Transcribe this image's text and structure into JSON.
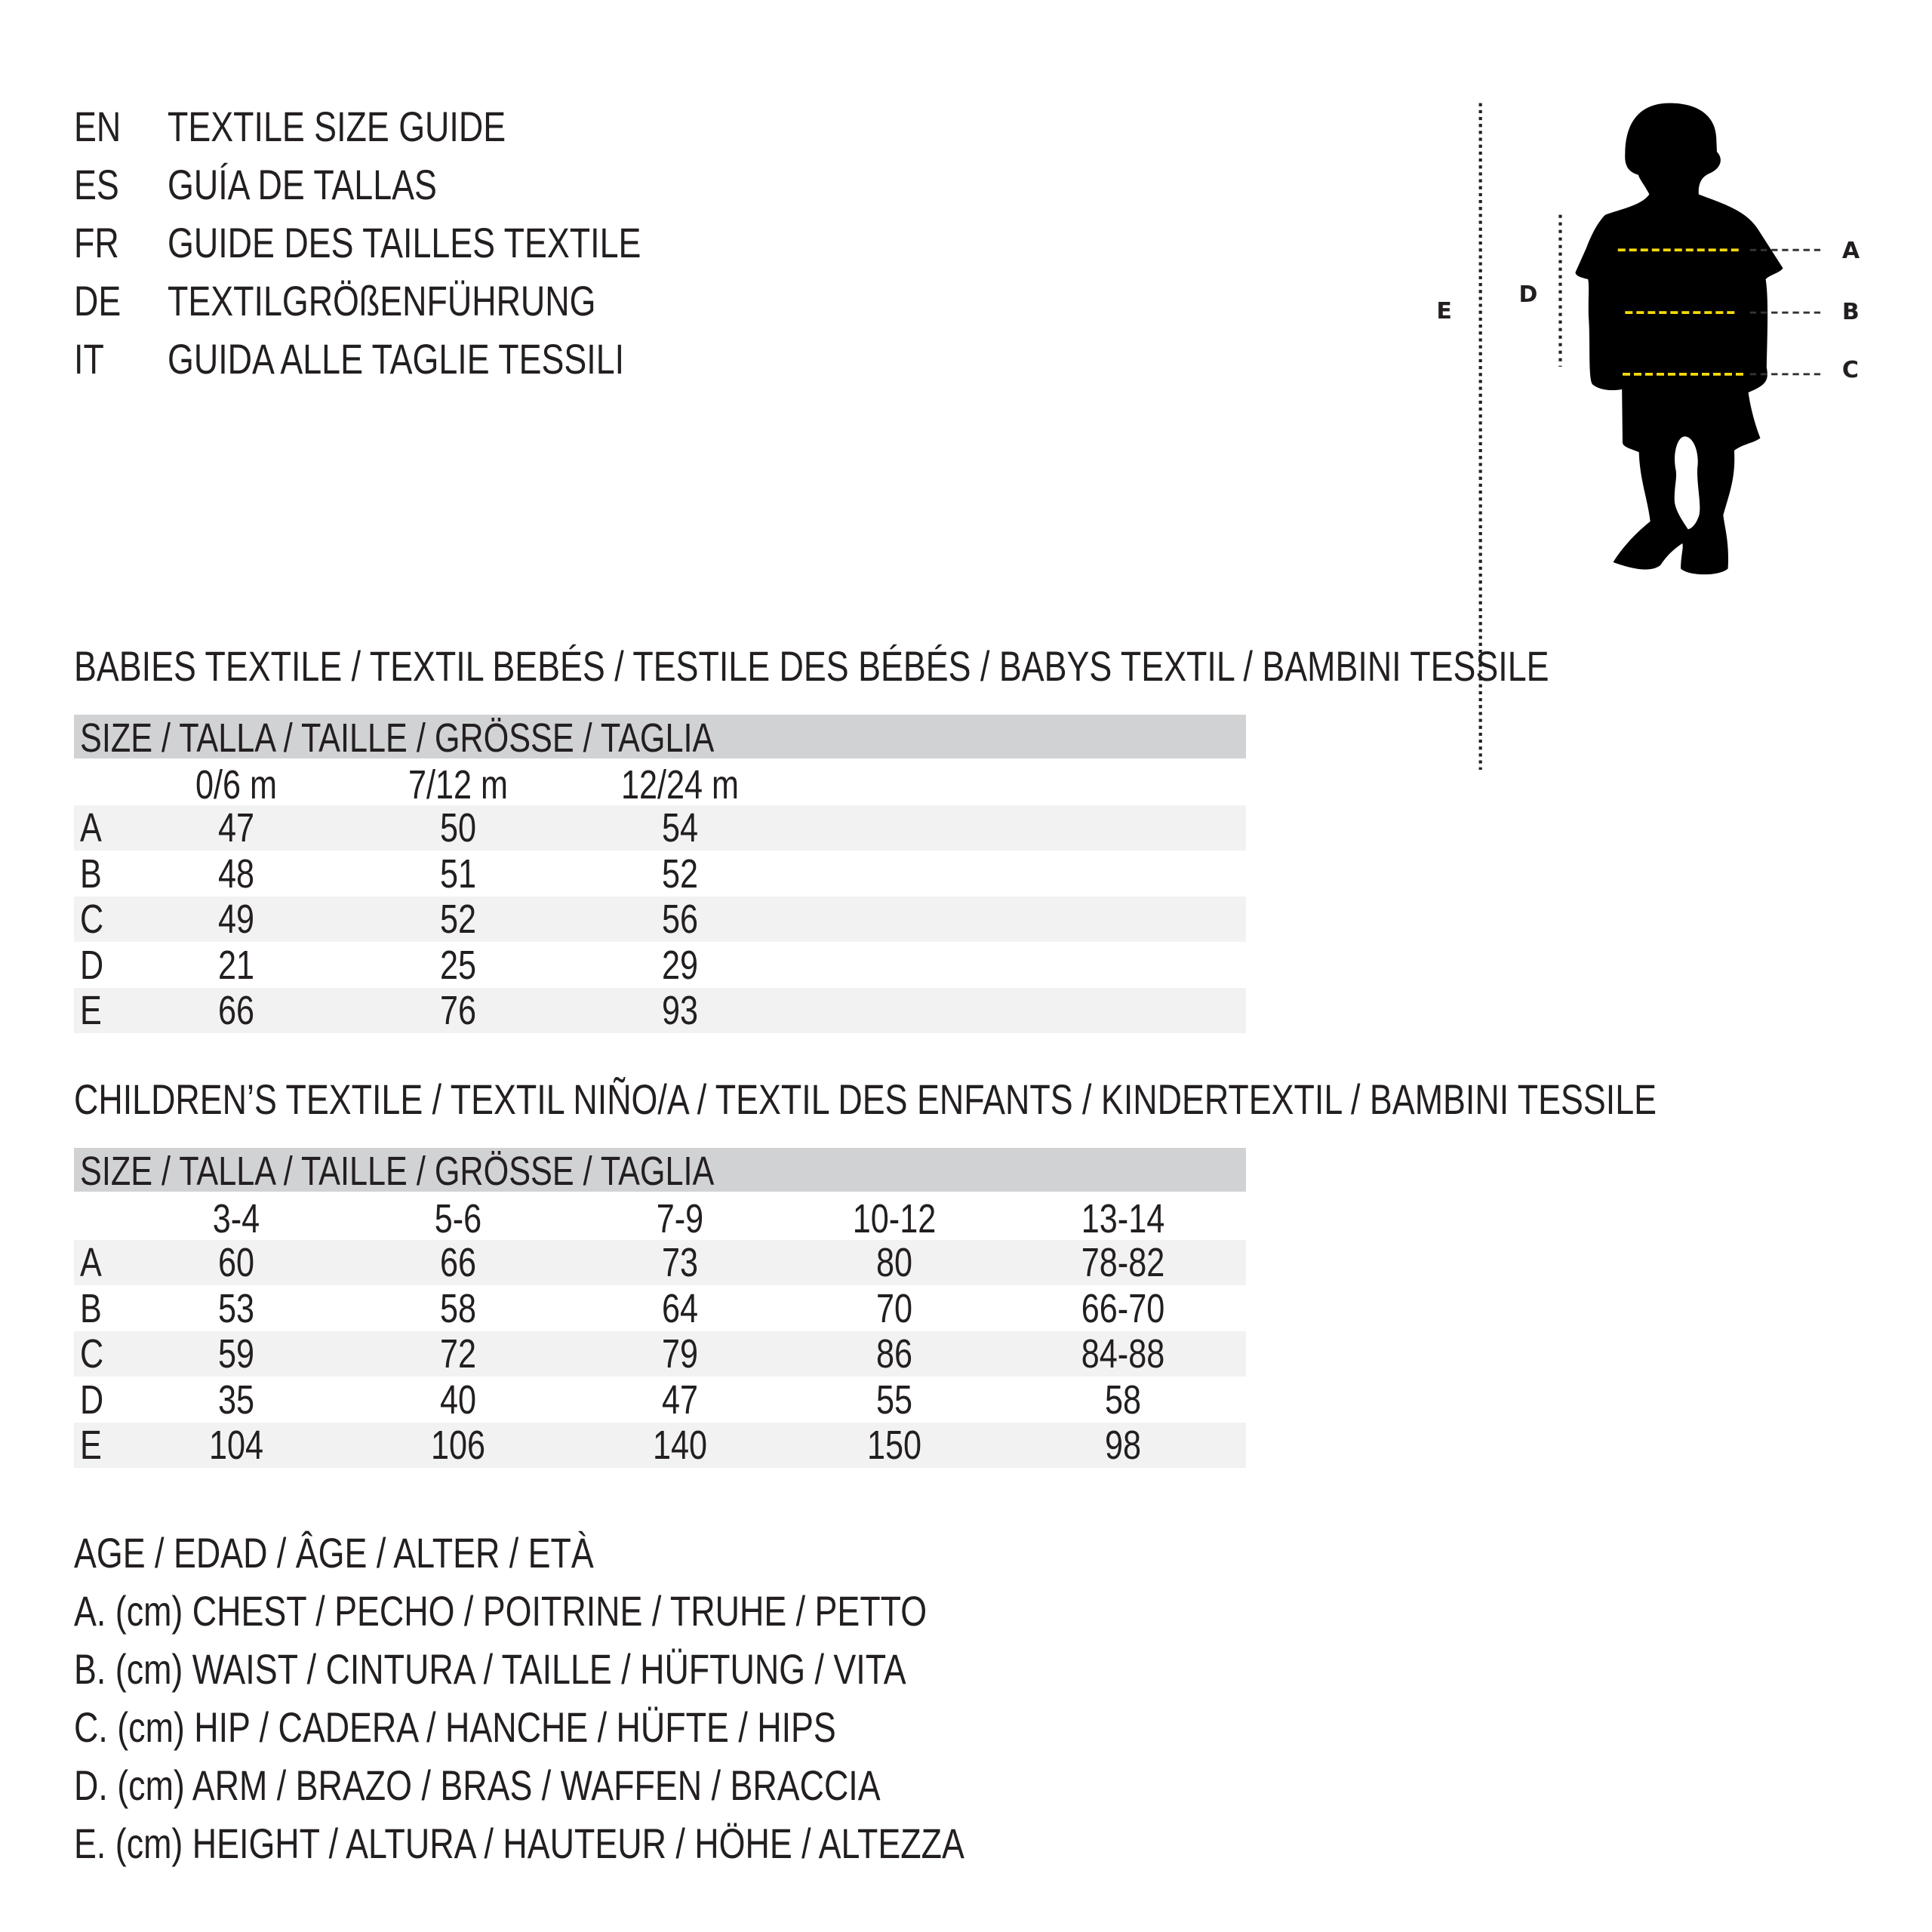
{
  "header": [
    {
      "code": "EN",
      "text": "TEXTILE SIZE GUIDE"
    },
    {
      "code": "ES",
      "text": "GUÍA DE TALLAS"
    },
    {
      "code": "FR",
      "text": "GUIDE DES TAILLES TEXTILE"
    },
    {
      "code": "DE",
      "text": "TEXTILGRÖßENFÜHRUNG"
    },
    {
      "code": "IT",
      "text": "GUIDA ALLE TAGLIE TESSILI"
    }
  ],
  "figure": {
    "labels": {
      "a": "A",
      "b": "B",
      "c": "C",
      "d": "D",
      "e": "E"
    },
    "measure_line_color": "#f5d90a"
  },
  "babies": {
    "title": "BABIES TEXTILE / TEXTIL BEBÉS / TESTILE DES BÉBÉS / BABYS TEXTIL / BAMBINI TESSILE",
    "size_header": "SIZE / TALLA / TAILLE / GRÖSSE / TAGLIA",
    "columns": [
      "0/6 m",
      "7/12 m",
      "12/24 m"
    ],
    "rows": [
      {
        "label": "A",
        "values": [
          "47",
          "50",
          "54"
        ]
      },
      {
        "label": "B",
        "values": [
          "48",
          "51",
          "52"
        ]
      },
      {
        "label": "C",
        "values": [
          "49",
          "52",
          "56"
        ]
      },
      {
        "label": "D",
        "values": [
          "21",
          "25",
          "29"
        ]
      },
      {
        "label": "E",
        "values": [
          "66",
          "76",
          "93"
        ]
      }
    ]
  },
  "children": {
    "title": "CHILDREN’S TEXTILE / TEXTIL NIÑO/A / TEXTIL DES ENFANTS / KINDERTEXTIL / BAMBINI TESSILE",
    "size_header": "SIZE / TALLA / TAILLE / GRÖSSE / TAGLIA",
    "columns": [
      "3-4",
      "5-6",
      "7-9",
      "10-12",
      "13-14"
    ],
    "rows": [
      {
        "label": "A",
        "values": [
          "60",
          "66",
          "73",
          "80",
          "78-82"
        ]
      },
      {
        "label": "B",
        "values": [
          "53",
          "58",
          "64",
          "70",
          "66-70"
        ]
      },
      {
        "label": "C",
        "values": [
          "59",
          "72",
          "79",
          "86",
          "84-88"
        ]
      },
      {
        "label": "D",
        "values": [
          "35",
          "40",
          "47",
          "55",
          "58"
        ]
      },
      {
        "label": "E",
        "values": [
          "104",
          "106",
          "140",
          "150",
          "98"
        ]
      }
    ]
  },
  "legend": [
    "AGE / EDAD / ÂGE / ALTER / ETÀ",
    "A. (cm) CHEST / PECHO / POITRINE / TRUHE / PETTO",
    "B. (cm) WAIST / CINTURA / TAILLE / HÜFTUNG / VITA",
    "C. (cm) HIP / CADERA / HANCHE / HÜFTE / HIPS",
    "D. (cm) ARM / BRAZO / BRAS / WAFFEN / BRACCIA",
    "E. (cm) HEIGHT / ALTURA / HAUTEUR / HÖHE / ALTEZZA"
  ]
}
